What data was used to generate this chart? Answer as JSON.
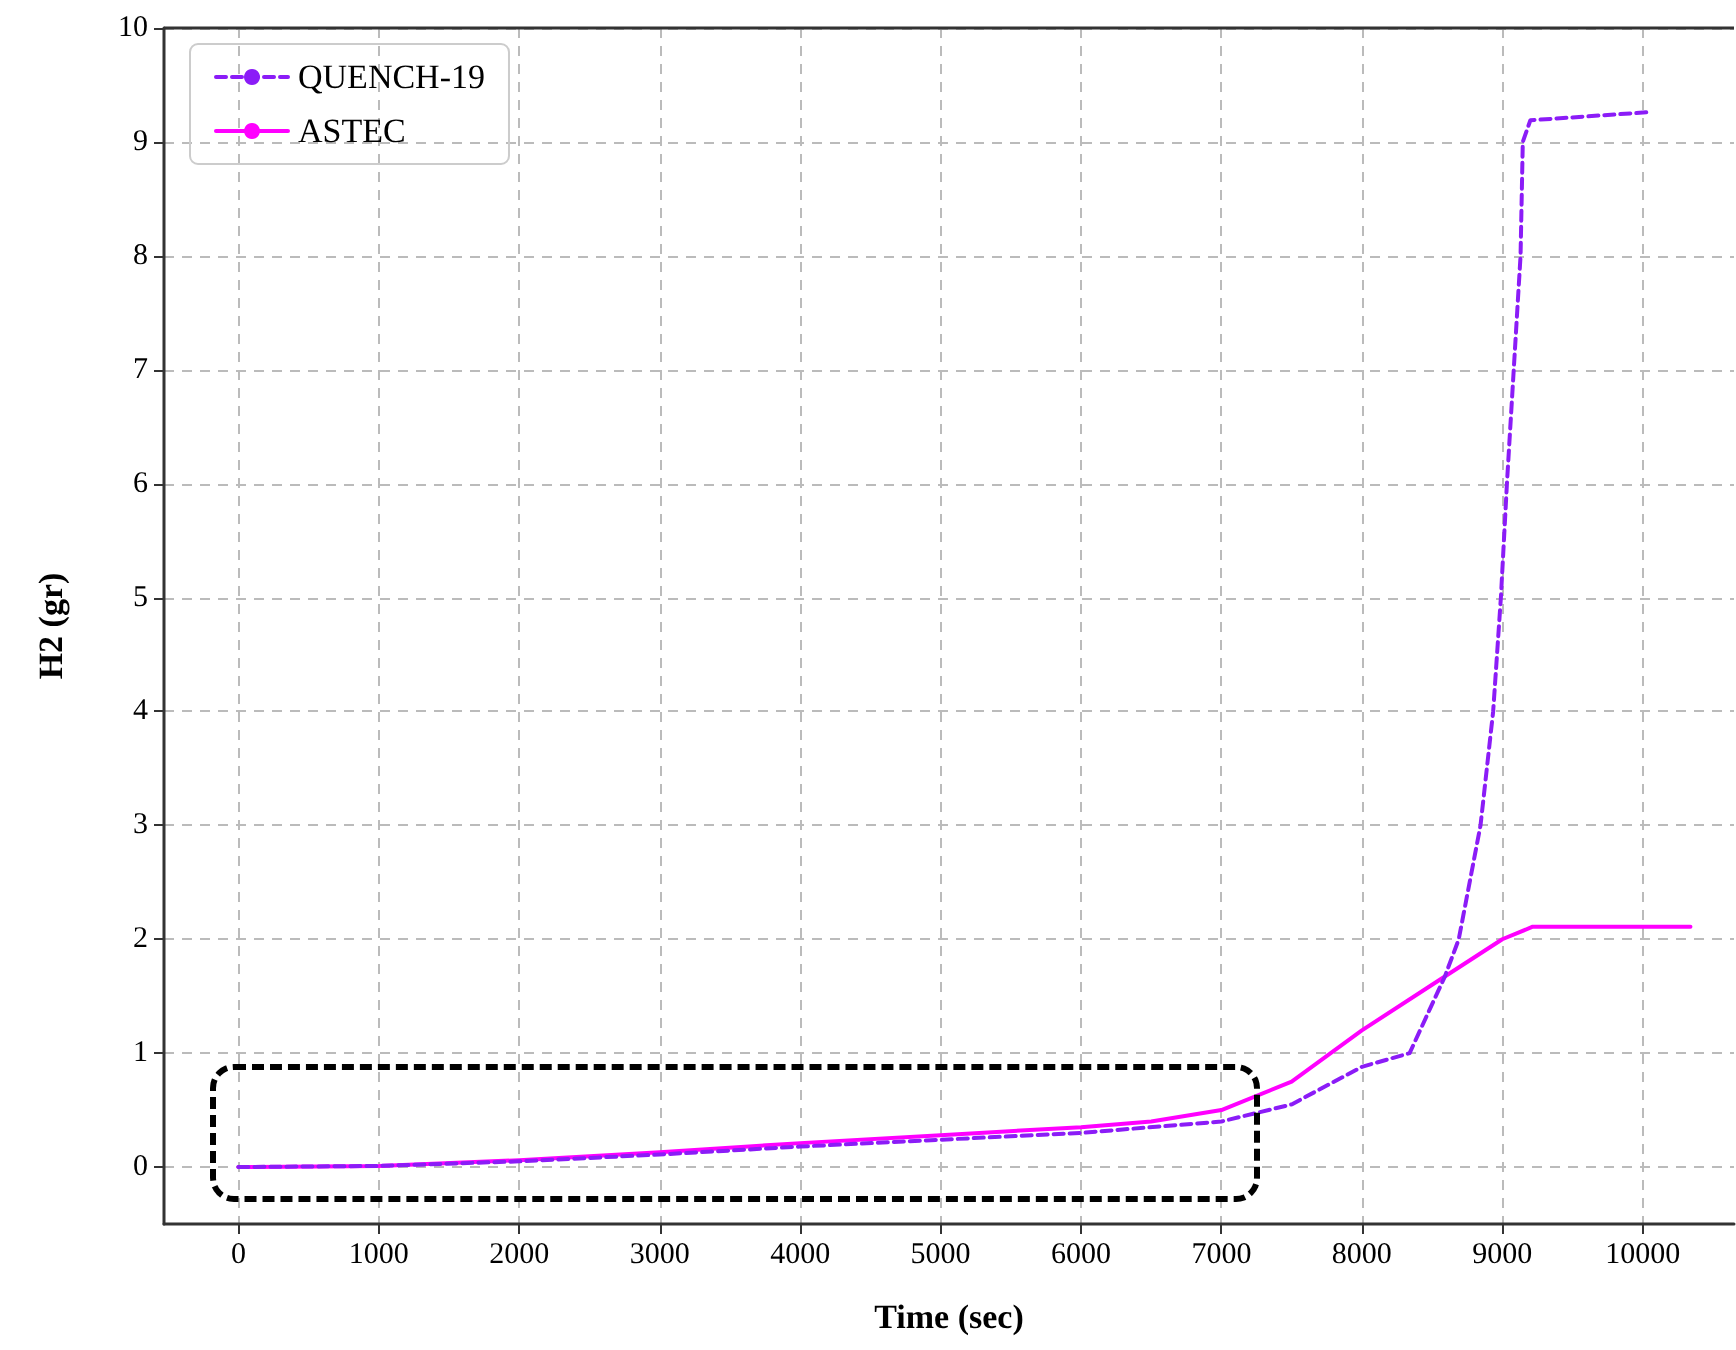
{
  "chart_data": {
    "type": "line",
    "xlabel": "Time (sec)",
    "ylabel": "H2 (gr)",
    "xlim": [
      -530,
      10650
    ],
    "ylim": [
      -0.5,
      10
    ],
    "xticks": [
      0,
      1000,
      2000,
      3000,
      4000,
      5000,
      6000,
      7000,
      8000,
      9000,
      10000
    ],
    "yticks": [
      0,
      1,
      2,
      3,
      4,
      5,
      6,
      7,
      8,
      9,
      10
    ],
    "grid": true,
    "legend": "top left",
    "marker": "none",
    "series": [
      {
        "name": "QUENCH-19",
        "color": "#8b1cf7",
        "line_style": "dashed",
        "x": [
          0,
          1000,
          2000,
          3000,
          4000,
          5000,
          6000,
          7000,
          7500,
          8000,
          8340,
          8590,
          8690,
          8845,
          8935,
          8990,
          9033,
          9130,
          9146,
          9200,
          10030
        ],
        "values": [
          0,
          0.01,
          0.05,
          0.11,
          0.18,
          0.24,
          0.3,
          0.4,
          0.55,
          0.88,
          1.0,
          1.67,
          2.0,
          3.0,
          4.0,
          5.0,
          6.0,
          8.0,
          9.0,
          9.19,
          9.26
        ]
      },
      {
        "name": "ASTEC",
        "color": "#ff00ff",
        "line_style": "solid",
        "x": [
          0,
          1000,
          2000,
          3000,
          4000,
          5000,
          6000,
          6500,
          7000,
          7500,
          8000,
          8500,
          9000,
          9217,
          10340
        ],
        "values": [
          0,
          0.01,
          0.06,
          0.13,
          0.21,
          0.28,
          0.35,
          0.4,
          0.5,
          0.75,
          1.2,
          1.6,
          2.0,
          2.11,
          2.11
        ]
      }
    ]
  }
}
